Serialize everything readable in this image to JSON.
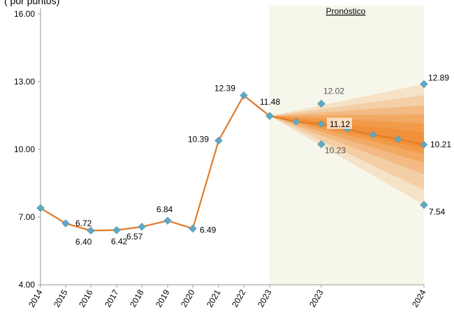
{
  "header_fragment": "(                  por puntos)",
  "chart_data": {
    "type": "line",
    "title": "",
    "xlabel": "",
    "ylabel": "",
    "ylim": [
      4.0,
      16.0
    ],
    "yticks": [
      "4.00",
      "7.00",
      "10.00",
      "13.00",
      "16.00"
    ],
    "x_tick_labels": [
      "2014",
      "2015",
      "2016",
      "2017",
      "2018",
      "2019",
      "2020",
      "2021",
      "2022",
      "2023",
      "2023",
      "2024"
    ],
    "forecast_label": "Pronóstico",
    "history": {
      "x": [
        "2014",
        "2015",
        "2016",
        "2017",
        "2018",
        "2019",
        "2020",
        "2021",
        "2022",
        "2023"
      ],
      "values": [
        7.4,
        6.72,
        6.4,
        6.42,
        6.57,
        6.84,
        6.49,
        10.39,
        12.39,
        11.48
      ],
      "labels": [
        "",
        "6.72",
        "6.40",
        "6.42",
        "6.57",
        "6.84",
        "6.49",
        "10.39",
        "12.39",
        "11.48"
      ]
    },
    "forecast_central": [
      11.48,
      11.22,
      11.12,
      10.9,
      10.65,
      10.45,
      10.21
    ],
    "forecast_central_labels": [
      "",
      "",
      "11.12",
      "",
      "",
      "",
      "10.21"
    ],
    "forecast_upper_2023": 12.02,
    "forecast_lower_2023": 10.23,
    "forecast_upper_2024": 12.89,
    "forecast_lower_2024": 7.54,
    "fan_bands": [
      {
        "upper": 12.89,
        "lower": 7.54
      },
      {
        "upper": 12.4,
        "lower": 8.2
      },
      {
        "upper": 11.95,
        "lower": 8.9
      },
      {
        "upper": 11.55,
        "lower": 9.4
      },
      {
        "upper": 11.15,
        "lower": 9.8
      },
      {
        "upper": 10.75,
        "lower": 10.05
      }
    ],
    "colors": {
      "line": "#E07B28",
      "marker": "#5FA8C2",
      "forecast_bg": "#F7F6EA",
      "fan": "#F08A2C"
    }
  }
}
